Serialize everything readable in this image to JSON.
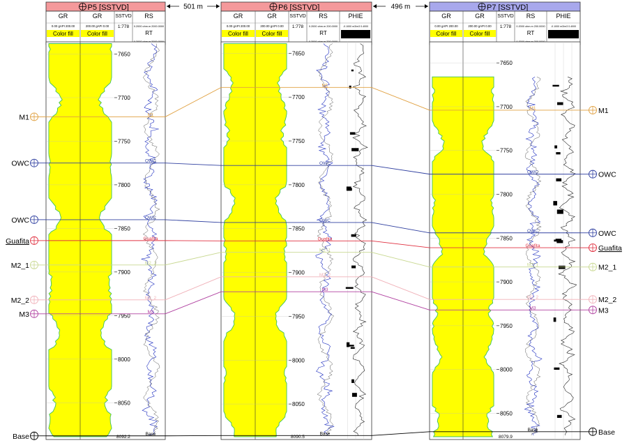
{
  "wells": [
    {
      "name": "P5 [SSTVD]",
      "title_color": "#f4999b",
      "gr_left": {
        "label": "GR",
        "scale": "0.00 gAPI 200.00",
        "fill_label": "Color fill"
      },
      "gr_right": {
        "label": "GR",
        "scale": "200.00 gAPI 0.00",
        "fill_label": "Color fill"
      },
      "depth": {
        "label": "SSTVD",
        "scale": "1:778"
      },
      "rs": {
        "label": "RS",
        "scale": "0.2000 ohm.m 2000.0000"
      },
      "rt": {
        "label": "RT",
        "scale": "0.2000 ohm.m 2000.0000"
      },
      "depth_range": [
        7636,
        8092.2
      ],
      "bottom_depth_label": "8092.2",
      "ticks": [
        {
          "depth": 7650,
          "label": "7650"
        },
        {
          "depth": 7700,
          "label": "7700"
        },
        {
          "depth": 7750,
          "label": "7750"
        },
        {
          "depth": 7800,
          "label": "7800"
        },
        {
          "depth": 7850,
          "label": "7850"
        },
        {
          "depth": 7900,
          "label": "7900"
        },
        {
          "depth": 7950,
          "label": "7950"
        },
        {
          "depth": 8000,
          "label": "8000"
        },
        {
          "depth": 8050,
          "label": "8050"
        }
      ],
      "markers": [
        {
          "name": "M1",
          "depth": 7722,
          "color": "#e0a040"
        },
        {
          "name": "OWC",
          "depth": 7775,
          "color": "#3040a0"
        },
        {
          "name": "OWC",
          "depth": 7840,
          "color": "#3040a0"
        },
        {
          "name": "Guafita",
          "depth": 7864,
          "color": "#e03040"
        },
        {
          "name": "M2_1",
          "depth": 7892,
          "color": "#c8d890"
        },
        {
          "name": "M2_2",
          "depth": 7932,
          "color": "#f0b0b8"
        },
        {
          "name": "M3",
          "depth": 7948,
          "color": "#b040a0"
        },
        {
          "name": "Base",
          "depth": 8088,
          "color": "#000000"
        }
      ]
    },
    {
      "name": "P6 [SSTVD]",
      "title_color": "#f4999b",
      "gr_left": {
        "label": "GR",
        "scale": "0.00 gAPI 200.00",
        "fill_label": "Color fill"
      },
      "gr_right": {
        "label": "GR",
        "scale": "200.00 gAPI 0.00",
        "fill_label": "Color fill"
      },
      "depth": {
        "label": "SSTVD",
        "scale": "1:778"
      },
      "rs": {
        "label": "RS",
        "scale": "0.2000 ohm.m 200.0000"
      },
      "rt": {
        "label": "RT",
        "scale": "0.2000 ohm.m 200.0000"
      },
      "phie": {
        "label": "PHIE",
        "scale": "-0.1000 m3/m3 0.4000"
      },
      "depth_range": [
        7637,
        8090.5
      ],
      "bottom_depth_label": "8090.5",
      "ticks": [
        {
          "depth": 7650,
          "label": "7650"
        },
        {
          "depth": 7700,
          "label": "7700"
        },
        {
          "depth": 7750,
          "label": "7750"
        },
        {
          "depth": 7800,
          "label": "7800"
        },
        {
          "depth": 7850,
          "label": "7850"
        },
        {
          "depth": 7900,
          "label": "7900"
        },
        {
          "depth": 7950,
          "label": "7950"
        },
        {
          "depth": 8000,
          "label": "8000"
        },
        {
          "depth": 8050,
          "label": "8050"
        }
      ],
      "markers": [
        {
          "name": "M1",
          "depth": 7689,
          "color": "#e0a040"
        },
        {
          "name": "OWC",
          "depth": 7778,
          "color": "#3040a0"
        },
        {
          "name": "OWC",
          "depth": 7843,
          "color": "#3040a0"
        },
        {
          "name": "Guafita",
          "depth": 7864,
          "color": "#e03040"
        },
        {
          "name": "M2_1",
          "depth": 7877,
          "color": "#c8d890"
        },
        {
          "name": "M2_2",
          "depth": 7905,
          "color": "#f0b0b8"
        },
        {
          "name": "M3",
          "depth": 7922,
          "color": "#b040a0"
        },
        {
          "name": "Base",
          "depth": 8086,
          "color": "#000000"
        }
      ]
    },
    {
      "name": "P7 [SSTVD]",
      "title_color": "#a8a8ec",
      "gr_left": {
        "label": "GR",
        "scale": "0.00 gAPI 200.00",
        "fill_label": "Color fill"
      },
      "gr_right": {
        "label": "GR",
        "scale": "200.00 gAPI 0.00",
        "fill_label": "Color fill"
      },
      "depth": {
        "label": "SSTVD",
        "scale": "1:778"
      },
      "rs": {
        "label": "RS",
        "scale": "0.2000 ohm.m 200.0000"
      },
      "rt": {
        "label": "RT",
        "scale": "0.2000 ohm.m 200.0000"
      },
      "phie": {
        "label": "PHIE",
        "scale": "-0.1000 m3/m3 0.4000"
      },
      "depth_range": [
        7626,
        8079.9
      ],
      "bottom_depth_label": "8079.9",
      "ticks": [
        {
          "depth": 7650,
          "label": "7650"
        },
        {
          "depth": 7700,
          "label": "7700"
        },
        {
          "depth": 7750,
          "label": "7750"
        },
        {
          "depth": 7800,
          "label": "7800"
        },
        {
          "depth": 7850,
          "label": "7850"
        },
        {
          "depth": 7900,
          "label": "7900"
        },
        {
          "depth": 7950,
          "label": "7950"
        },
        {
          "depth": 8000,
          "label": "8000"
        },
        {
          "depth": 8050,
          "label": "8050"
        }
      ],
      "markers": [
        {
          "name": "M1",
          "depth": 7704,
          "color": "#e0a040"
        },
        {
          "name": "OWC",
          "depth": 7777,
          "color": "#3040a0"
        },
        {
          "name": "OWC",
          "depth": 7844,
          "color": "#3040a0"
        },
        {
          "name": "Guafita",
          "depth": 7861,
          "color": "#e03040"
        },
        {
          "name": "M2_1",
          "depth": 7883,
          "color": "#c8d890"
        },
        {
          "name": "M2_2",
          "depth": 7920,
          "color": "#f0b0b8"
        },
        {
          "name": "M3",
          "depth": 7932,
          "color": "#b040a0"
        },
        {
          "name": "Base",
          "depth": 8071,
          "color": "#000000"
        }
      ]
    }
  ],
  "distances": [
    "501 m",
    "496 m"
  ],
  "chart_data": {
    "type": "well-log-correlation",
    "wells": [
      "P5",
      "P6",
      "P7"
    ],
    "spacing_m": [
      501,
      496
    ],
    "tracks": [
      "GR",
      "GR",
      "SSTVD",
      "RS",
      "RT",
      "PHIE"
    ],
    "depth_unit_label": "SSTVD",
    "scale": "1:778",
    "tops": {
      "P5": {
        "M1": 7722,
        "OWC": [
          7775,
          7840
        ],
        "Guafita": 7864,
        "M2_1": 7892,
        "M2_2": 7932,
        "M3": 7948,
        "Base": 8088
      },
      "P6": {
        "M1": 7689,
        "OWC": [
          7778,
          7843
        ],
        "Guafita": 7864,
        "M2_1": 7877,
        "M2_2": 7905,
        "M3": 7922,
        "Base": 8086
      },
      "P7": {
        "M1": 7704,
        "OWC": [
          7777,
          7844
        ],
        "Guafita": 7861,
        "M2_1": 7883,
        "M2_2": 7920,
        "M3": 7932,
        "Base": 8071
      }
    },
    "td": {
      "P5": 8092.2,
      "P6": 8090.5,
      "P7": 8079.9
    }
  }
}
